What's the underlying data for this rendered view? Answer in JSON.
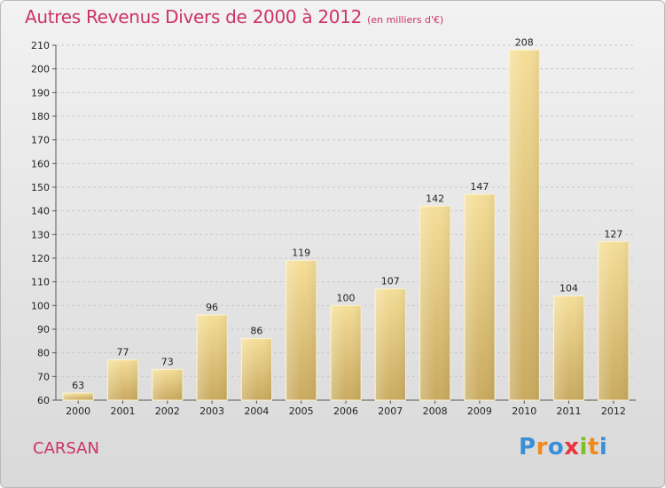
{
  "header": {
    "title": "Autres Revenus Divers de 2000 à 2012",
    "unit": "(en milliers d'€)"
  },
  "footer": {
    "commune": "CARSAN",
    "logo_letters": [
      "P",
      "r",
      "o",
      "x",
      "i",
      "t",
      "i"
    ],
    "logo_colors": [
      "#3a8fd6",
      "#f08a1c",
      "#3a8fd6",
      "#e8343c",
      "#7cbf2a",
      "#f08a1c",
      "#3a8fd6"
    ]
  },
  "colors": {
    "title": "#cc3366",
    "bar_top": "#f5de98",
    "bar_bottom": "#c9aa60",
    "grid": "#c8c8c8",
    "axis": "#555555"
  },
  "chart_data": {
    "type": "bar",
    "title": "Autres Revenus Divers de 2000 à 2012",
    "subtitle": "(en milliers d'€)",
    "categories": [
      "2000",
      "2001",
      "2002",
      "2003",
      "2004",
      "2005",
      "2006",
      "2007",
      "2008",
      "2009",
      "2010",
      "2011",
      "2012"
    ],
    "values": [
      63,
      77,
      73,
      96,
      86,
      119,
      100,
      107,
      142,
      147,
      208,
      104,
      127
    ],
    "ylim": [
      60,
      210
    ],
    "yticks": [
      60,
      70,
      80,
      90,
      100,
      110,
      120,
      130,
      140,
      150,
      160,
      170,
      180,
      190,
      200,
      210
    ],
    "grid": "horizontal dashed",
    "legend": "none"
  }
}
